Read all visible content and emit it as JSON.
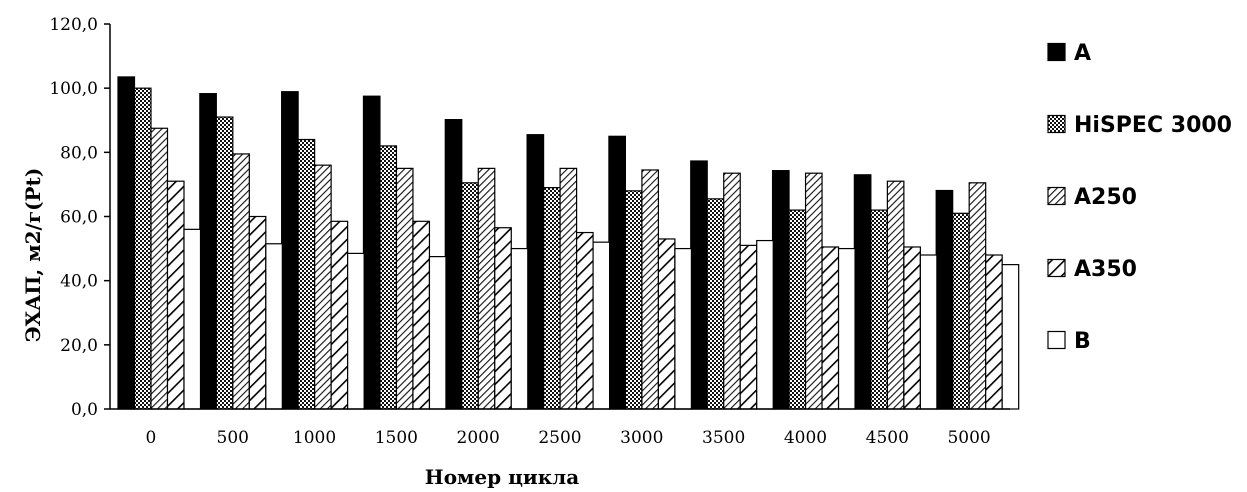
{
  "chart_data": {
    "type": "bar",
    "title": "",
    "xlabel": "Номер цикла",
    "ylabel": "ЭХАП, м2/г(Pt)",
    "ylim": [
      0,
      120
    ],
    "y_ticks": [
      "0,0",
      "20,0",
      "40,0",
      "60,0",
      "80,0",
      "100,0",
      "120,0"
    ],
    "grid": false,
    "legend_position": "right",
    "categories": [
      "0",
      "500",
      "1000",
      "1500",
      "2000",
      "2500",
      "3000",
      "3500",
      "4000",
      "4500",
      "5000"
    ],
    "series": [
      {
        "name": "A",
        "fill": "solid-black",
        "values": [
          103.5,
          98.3,
          98.9,
          97.5,
          90.2,
          85.5,
          85.0,
          77.3,
          74.3,
          73.0,
          68.1
        ]
      },
      {
        "name": "HiSPEC 3000",
        "fill": "crosshatch",
        "values": [
          100.0,
          91.0,
          84.0,
          82.0,
          70.5,
          69.0,
          68.0,
          65.5,
          62.0,
          62.0,
          61.0
        ]
      },
      {
        "name": "A250",
        "fill": "diagonal-lines",
        "values": [
          87.5,
          79.5,
          76.0,
          75.0,
          75.0,
          75.0,
          74.5,
          73.5,
          73.5,
          71.0,
          70.5
        ]
      },
      {
        "name": "A350",
        "fill": "bold-diagonal-lines",
        "values": [
          71.0,
          60.0,
          58.5,
          58.5,
          56.5,
          55.0,
          53.0,
          51.0,
          50.5,
          50.5,
          48.0
        ]
      },
      {
        "name": "B",
        "fill": "white",
        "values": [
          56.0,
          51.5,
          48.5,
          47.5,
          50.0,
          52.0,
          50.0,
          52.5,
          50.0,
          48.0,
          45.0
        ]
      }
    ]
  }
}
